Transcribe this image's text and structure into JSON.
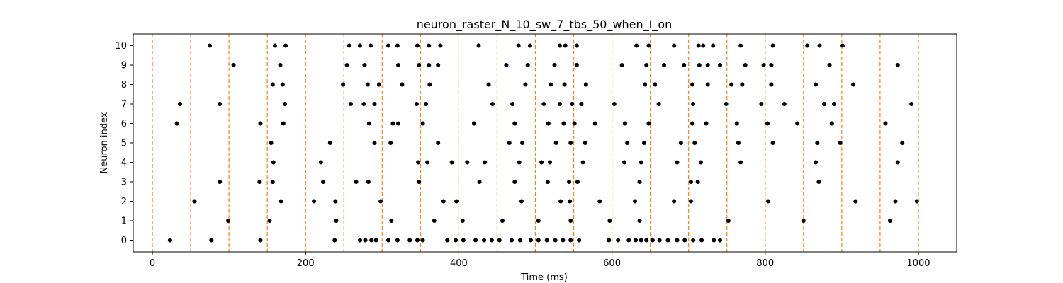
{
  "chart_data": {
    "type": "scatter",
    "title": "neuron_raster_N_10_sw_7_tbs_50_when_I_on",
    "xlabel": "Time (ms)",
    "ylabel": "Neuron index",
    "xlim": [
      -25,
      1050
    ],
    "ylim": [
      -0.6,
      10.6
    ],
    "xticks": [
      0,
      200,
      400,
      600,
      800,
      1000
    ],
    "yticks": [
      0,
      1,
      2,
      3,
      4,
      5,
      6,
      7,
      8,
      9,
      10
    ],
    "grid": false,
    "marker_color": "#000000",
    "vline_color": "#ff7f0e",
    "vlines_x": [
      0,
      50,
      100,
      150,
      200,
      250,
      300,
      350,
      400,
      450,
      500,
      550,
      600,
      650,
      700,
      750,
      800,
      850,
      900,
      950,
      1000
    ],
    "spikes": [
      {
        "neuron": 0,
        "times": [
          23,
          77,
          141,
          238,
          271,
          278,
          286,
          292,
          308,
          320,
          336,
          346,
          353,
          385,
          396,
          406,
          422,
          433,
          443,
          453,
          469,
          480,
          494,
          504,
          515,
          526,
          536,
          546,
          557,
          596,
          608,
          622,
          631,
          638,
          645,
          653,
          662,
          673,
          685,
          695,
          706,
          717,
          733,
          741
        ]
      },
      {
        "neuron": 1,
        "times": [
          99,
          153,
          240,
          312,
          368,
          405,
          457,
          504,
          546,
          597,
          636,
          752,
          850,
          963
        ]
      },
      {
        "neuron": 2,
        "times": [
          55,
          168,
          211,
          239,
          298,
          380,
          397,
          482,
          533,
          545,
          584,
          630,
          681,
          703,
          804,
          918,
          970,
          998
        ]
      },
      {
        "neuron": 3,
        "times": [
          88,
          140,
          157,
          223,
          266,
          282,
          348,
          427,
          473,
          516,
          544,
          555,
          636,
          703,
          712,
          870
        ]
      },
      {
        "neuron": 4,
        "times": [
          158,
          220,
          347,
          359,
          391,
          411,
          434,
          479,
          508,
          519,
          562,
          616,
          638,
          685,
          716,
          768,
          866,
          973
        ]
      },
      {
        "neuron": 5,
        "times": [
          155,
          232,
          290,
          311,
          373,
          466,
          483,
          527,
          546,
          565,
          620,
          642,
          690,
          708,
          765,
          810,
          868,
          898,
          979
        ]
      },
      {
        "neuron": 6,
        "times": [
          32,
          141,
          171,
          283,
          314,
          321,
          353,
          420,
          473,
          517,
          537,
          551,
          578,
          617,
          648,
          705,
          723,
          763,
          803,
          842,
          887,
          957
        ]
      },
      {
        "neuron": 7,
        "times": [
          36,
          88,
          173,
          259,
          276,
          290,
          345,
          357,
          444,
          470,
          511,
          532,
          548,
          560,
          603,
          661,
          706,
          749,
          795,
          825,
          877,
          890,
          991
        ]
      },
      {
        "neuron": 8,
        "times": [
          157,
          170,
          249,
          281,
          296,
          326,
          362,
          439,
          487,
          520,
          538,
          566,
          643,
          656,
          705,
          725,
          756,
          770,
          808,
          866,
          915
        ]
      },
      {
        "neuron": 9,
        "times": [
          106,
          167,
          254,
          277,
          321,
          348,
          361,
          373,
          462,
          490,
          525,
          554,
          613,
          645,
          668,
          694,
          714,
          725,
          741,
          774,
          798,
          808,
          884,
          973
        ]
      },
      {
        "neuron": 10,
        "times": [
          75,
          160,
          174,
          257,
          271,
          285,
          308,
          320,
          346,
          361,
          376,
          426,
          478,
          493,
          532,
          539,
          554,
          632,
          648,
          681,
          713,
          719,
          732,
          768,
          810,
          855,
          871,
          901
        ]
      }
    ]
  }
}
